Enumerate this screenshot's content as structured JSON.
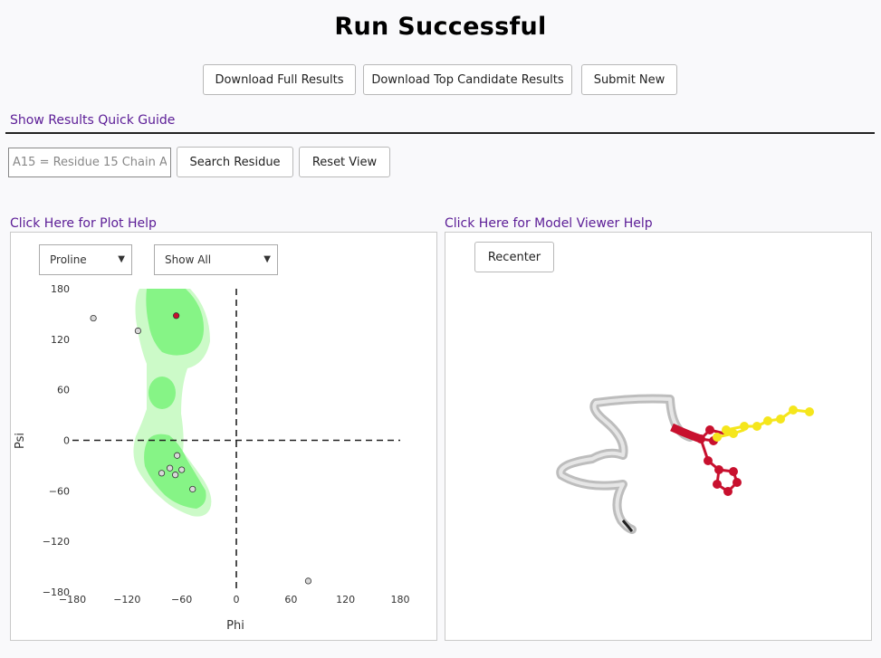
{
  "title": "Run Successful",
  "toolbar": {
    "download_full": "Download Full Results",
    "download_top": "Download Top Candidate Results",
    "submit_new": "Submit New"
  },
  "quick_guide_link": "Show Results Quick Guide",
  "search": {
    "placeholder": "A15 = Residue 15 Chain A",
    "value": "",
    "search_button": "Search Residue",
    "reset_button": "Reset View"
  },
  "plot_help_link": "Click Here for Plot Help",
  "model_help_link": "Click Here for Model Viewer Help",
  "plot_controls": {
    "residue_type": "Proline",
    "filter": "Show All"
  },
  "viewer": {
    "recenter_button": "Recenter"
  },
  "colors": {
    "favored": "#86f486",
    "allowed": "#ccfac8",
    "point": "#d8d8d8",
    "highlight": "#c8102e",
    "ribbon": "#c8c8c8",
    "ligand": "#f5e61c"
  },
  "chart_data": {
    "type": "scatter",
    "title": "",
    "xlabel": "Phi",
    "ylabel": "Psi",
    "xlim": [
      -180,
      180
    ],
    "ylim": [
      -180,
      180
    ],
    "xticks": [
      -180,
      -120,
      -60,
      0,
      60,
      120,
      180
    ],
    "yticks": [
      180,
      120,
      60,
      0,
      -60,
      -120,
      -180
    ],
    "grid": false,
    "points": [
      {
        "x": -157,
        "y": 145,
        "highlight": false
      },
      {
        "x": -108,
        "y": 130,
        "highlight": false
      },
      {
        "x": -66,
        "y": 148,
        "highlight": true
      },
      {
        "x": -65,
        "y": -18,
        "highlight": false
      },
      {
        "x": -73,
        "y": -33,
        "highlight": false
      },
      {
        "x": -60,
        "y": -35,
        "highlight": false
      },
      {
        "x": -67,
        "y": -41,
        "highlight": false
      },
      {
        "x": -82,
        "y": -39,
        "highlight": false
      },
      {
        "x": -48,
        "y": -58,
        "highlight": false
      },
      {
        "x": 79,
        "y": -167,
        "highlight": false
      }
    ]
  }
}
